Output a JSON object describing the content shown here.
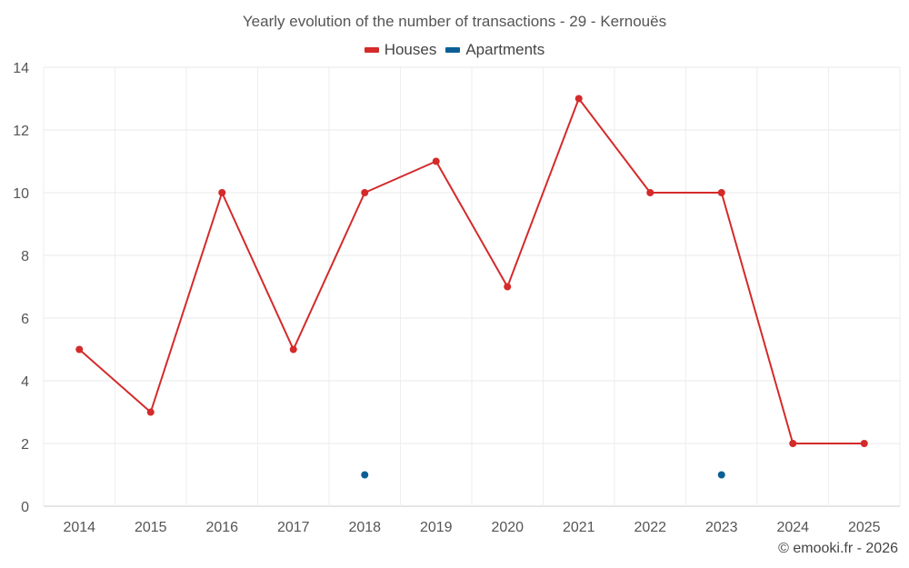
{
  "chart_data": {
    "type": "line",
    "title": "Yearly evolution of the number of transactions - 29 - Kernouës",
    "categories": [
      "2014",
      "2015",
      "2016",
      "2017",
      "2018",
      "2019",
      "2020",
      "2021",
      "2022",
      "2023",
      "2024",
      "2025"
    ],
    "series": [
      {
        "name": "Houses",
        "color": "#d42a2a",
        "values": [
          5,
          3,
          10,
          5,
          10,
          11,
          7,
          13,
          10,
          10,
          2,
          2
        ]
      },
      {
        "name": "Apartments",
        "color": "#0c5f96",
        "values": [
          null,
          null,
          null,
          null,
          1,
          null,
          null,
          null,
          null,
          1,
          null,
          null
        ]
      }
    ],
    "ylim": [
      0,
      14
    ],
    "yticks": [
      0,
      2,
      4,
      6,
      8,
      10,
      12,
      14
    ],
    "xlabel": "",
    "ylabel": "",
    "grid": true,
    "legend_position": "top-center"
  },
  "credit": "© emooki.fr - 2026"
}
